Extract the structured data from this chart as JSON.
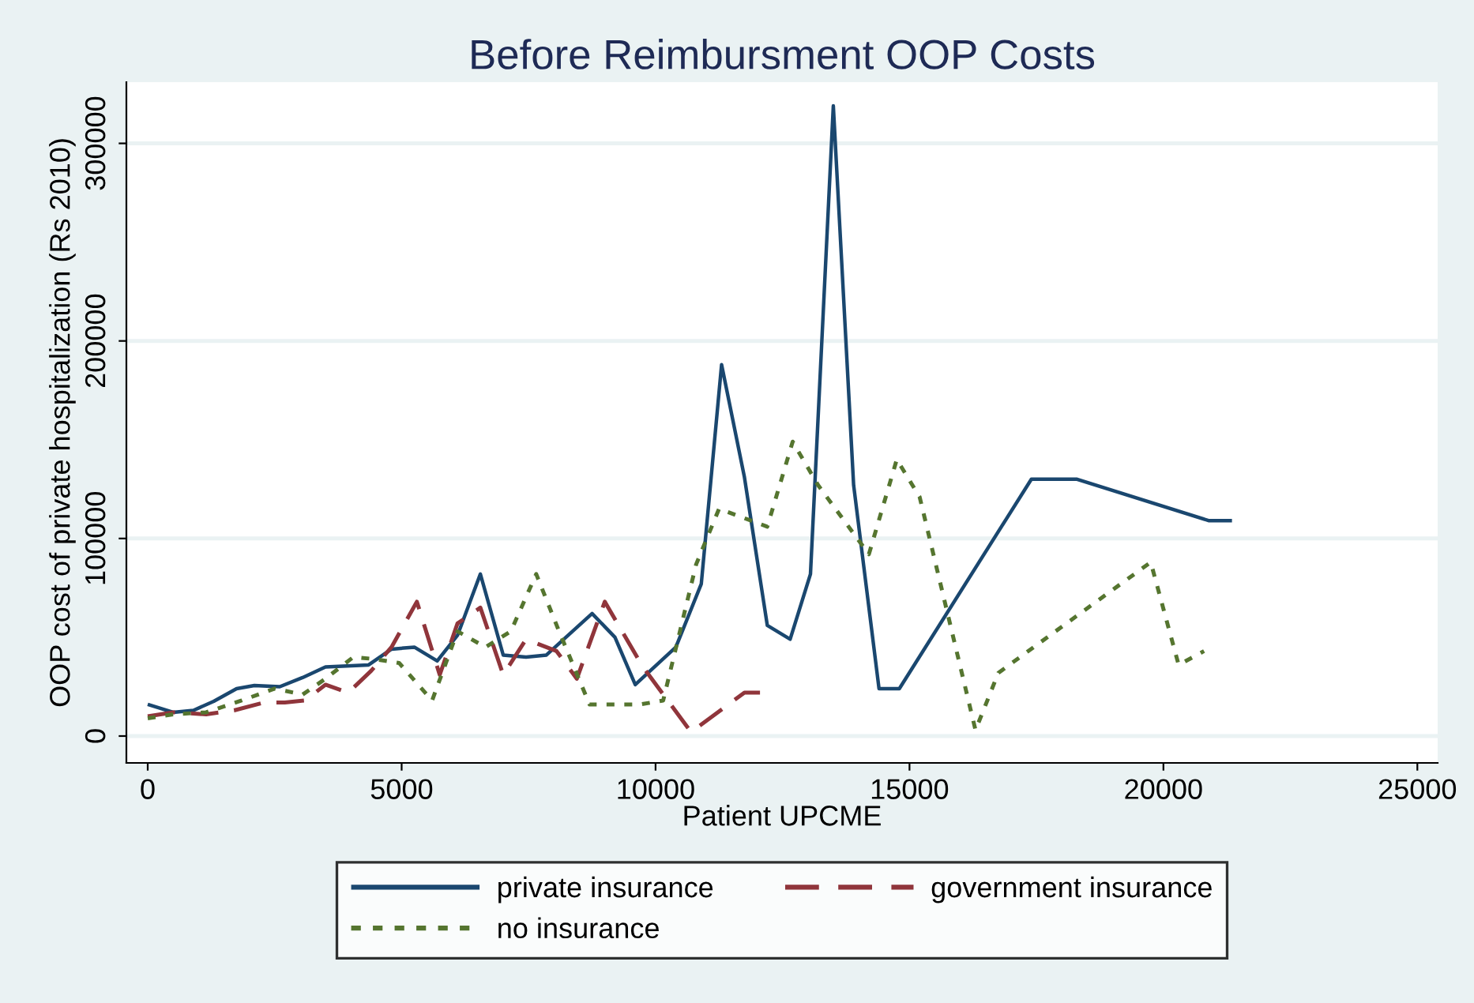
{
  "chart_data": {
    "type": "line",
    "title": "Before Reimbursment OOP Costs",
    "xlabel": "Patient UPCME",
    "ylabel": "OOP cost of private hospitalization (Rs 2010)",
    "xlim": [
      -420,
      25400
    ],
    "xticks": [
      0,
      5000,
      10000,
      15000,
      20000,
      25000
    ],
    "ylim": [
      -13600,
      331000
    ],
    "yticks": [
      0,
      100000,
      200000,
      300000
    ],
    "grid": "y",
    "legend": "bottom",
    "series": [
      {
        "name": "private insurance",
        "color": "#1a476f",
        "line_style": "solid",
        "x": [
          0,
          500,
          900,
          1300,
          1750,
          2100,
          2600,
          3050,
          3500,
          4350,
          4800,
          5250,
          5700,
          6100,
          6550,
          7000,
          7450,
          7850,
          8750,
          9200,
          9600,
          10400,
          10900,
          11300,
          11750,
          12200,
          12650,
          13050,
          13500,
          13900,
          14400,
          14800,
          17400,
          18300,
          20900,
          21350
        ],
        "values": [
          16000,
          12000,
          13000,
          17600,
          24000,
          25600,
          25000,
          29600,
          35000,
          36000,
          44000,
          45000,
          38000,
          51000,
          82000,
          41000,
          40000,
          41000,
          62000,
          50000,
          26000,
          45000,
          77000,
          188000,
          131000,
          56000,
          49000,
          82000,
          319000,
          127000,
          24000,
          24000,
          130000,
          130000,
          109000,
          109000
        ]
      },
      {
        "name": "government insurance",
        "color": "#90353b",
        "line_style": "dashed",
        "x": [
          0,
          500,
          1150,
          1700,
          2300,
          2700,
          3100,
          3500,
          3950,
          4400,
          4800,
          5300,
          5750,
          6100,
          6550,
          7000,
          7450,
          8050,
          8450,
          9000,
          9750,
          10700,
          11750,
          12100
        ],
        "values": [
          10000,
          12000,
          11000,
          13000,
          17000,
          17000,
          18000,
          26000,
          22000,
          33000,
          45000,
          68000,
          31000,
          57000,
          65000,
          31000,
          49000,
          43000,
          29000,
          68000,
          35000,
          2000,
          22000,
          22000
        ]
      },
      {
        "name": "no insurance",
        "color": "#55752f",
        "line_style": "dotted",
        "x": [
          0,
          500,
          1150,
          1850,
          2500,
          3050,
          3500,
          4050,
          4450,
          4950,
          5600,
          6100,
          6650,
          7150,
          7650,
          8100,
          8700,
          9700,
          10150,
          10800,
          11250,
          12200,
          12700,
          13200,
          14200,
          14750,
          15200,
          16300,
          16750,
          19750,
          20300,
          20800
        ],
        "values": [
          9000,
          11000,
          12000,
          18000,
          24000,
          21000,
          29000,
          40000,
          39000,
          37000,
          18000,
          53000,
          45000,
          53000,
          82000,
          53000,
          16000,
          16000,
          18000,
          87000,
          115000,
          106000,
          149000,
          127000,
          92000,
          140000,
          121000,
          3000,
          32000,
          88000,
          36000,
          43000
        ]
      }
    ]
  }
}
